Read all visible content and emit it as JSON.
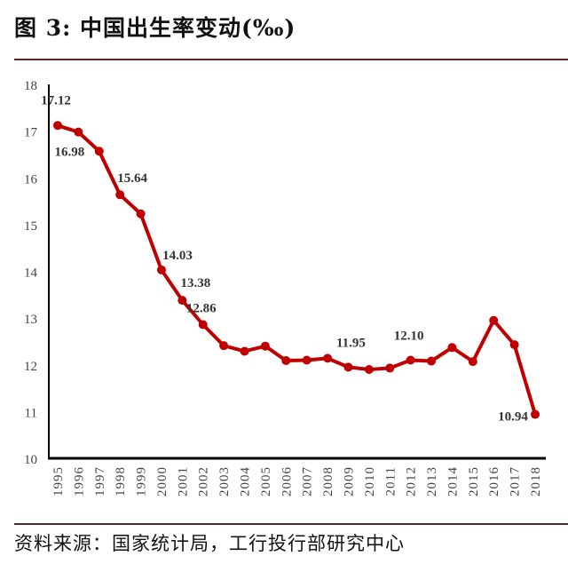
{
  "title": "图 3:  中国出生率变动(‰)",
  "source": "资料来源：国家统计局，工行投行部研究中心",
  "chart_data": {
    "type": "line",
    "title": "中国出生率变动(‰)",
    "xlabel": "",
    "ylabel": "",
    "ylim": [
      10,
      18
    ],
    "yticks": [
      10,
      11,
      12,
      13,
      14,
      15,
      16,
      17,
      18
    ],
    "grid": false,
    "line_color": "#c00000",
    "categories": [
      "1995",
      "1996",
      "1997",
      "1998",
      "1999",
      "2000",
      "2001",
      "2002",
      "2003",
      "2004",
      "2005",
      "2006",
      "2007",
      "2008",
      "2009",
      "2010",
      "2011",
      "2012",
      "2013",
      "2014",
      "2015",
      "2016",
      "2017",
      "2018"
    ],
    "series": [
      {
        "values": [
          17.12,
          16.98,
          16.57,
          15.64,
          15.23,
          14.03,
          13.38,
          12.86,
          12.41,
          12.29,
          12.4,
          12.09,
          12.1,
          12.14,
          11.95,
          11.9,
          11.93,
          12.1,
          12.08,
          12.37,
          12.07,
          12.95,
          12.43,
          10.94
        ]
      }
    ],
    "data_labels": [
      {
        "year": "1995",
        "text": "17.12"
      },
      {
        "year": "1996",
        "text": "16.98"
      },
      {
        "year": "1998",
        "text": "15.64"
      },
      {
        "year": "2000",
        "text": "14.03"
      },
      {
        "year": "2001",
        "text": "13.38"
      },
      {
        "year": "2002",
        "text": "12.86"
      },
      {
        "year": "2009",
        "text": "11.95"
      },
      {
        "year": "2012",
        "text": "12.10"
      },
      {
        "year": "2018",
        "text": "10.94"
      }
    ]
  }
}
